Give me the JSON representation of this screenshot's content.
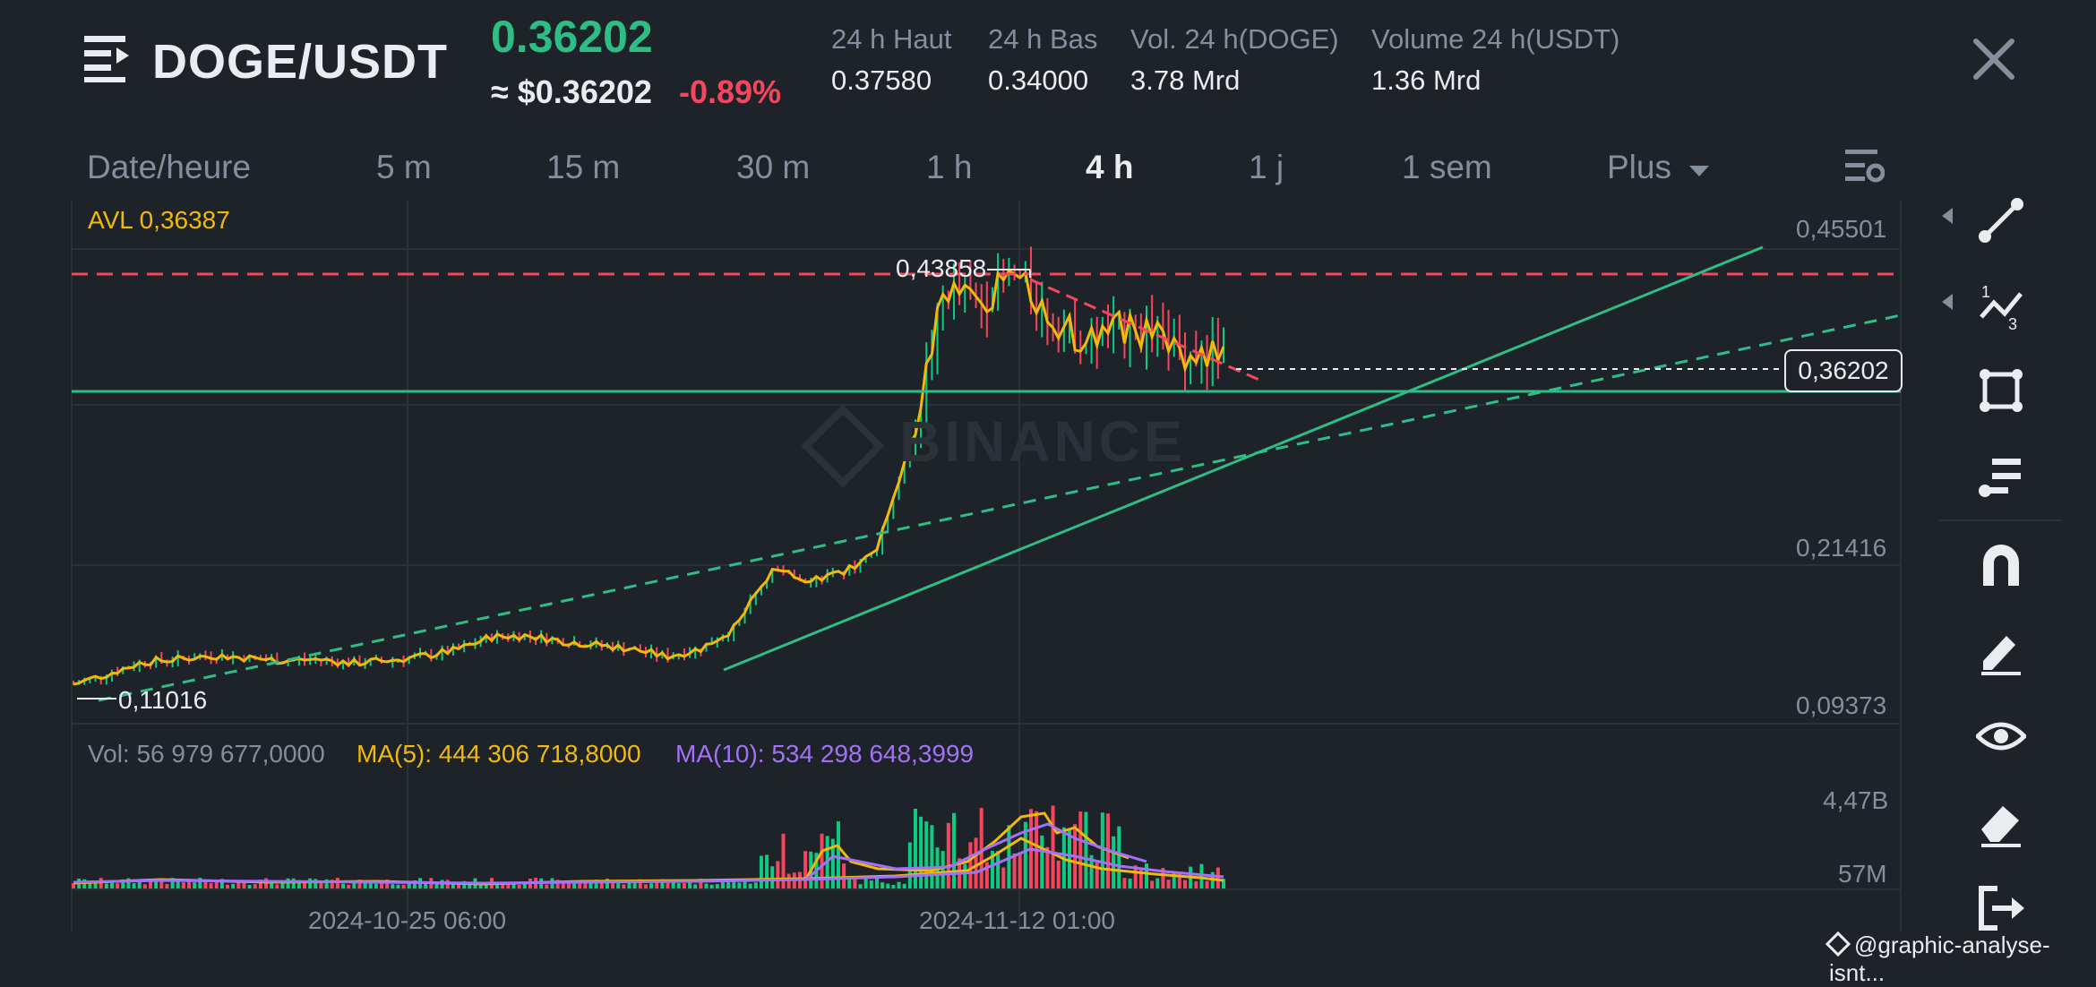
{
  "header": {
    "pair": "DOGE/USDT",
    "price": "0.36202",
    "approx_price": "≈ $0.36202",
    "change": "-0.89%",
    "stats": [
      {
        "label": "24 h Haut",
        "value": "0.37580"
      },
      {
        "label": "24 h Bas",
        "value": "0.34000"
      },
      {
        "label": "Vol. 24 h(DOGE)",
        "value": "3.78 Mrd"
      },
      {
        "label": "Volume 24 h(USDT)",
        "value": "1.36 Mrd"
      }
    ]
  },
  "timeframes": [
    "Date/heure",
    "5 m",
    "15 m",
    "30 m",
    "1 h",
    "4 h",
    "1 j",
    "1 sem",
    "Plus"
  ],
  "active_timeframe": "4 h",
  "chart": {
    "avl_label": "AVL 0,36387",
    "high_label": "0,43858",
    "low_label": "0,11016",
    "current_price_box": "0,36202",
    "watermark": "BINANCE",
    "price_axis": [
      "0,45501",
      "0,21416",
      "0,09373"
    ],
    "volume_axis": [
      "4,47B",
      "57M"
    ],
    "time_axis": [
      "2024-10-25 06:00",
      "2024-11-12 01:00"
    ],
    "vol_label": "Vol: 56 979 677,0000",
    "ma5_label": "MA(5): 444 306 718,8000",
    "ma10_label": "MA(10): 534 298 648,3999"
  },
  "chart_data": {
    "type": "candlestick",
    "pair": "DOGE/USDT",
    "interval": "4 h",
    "price_axis_ticks": [
      0.45501,
      0.21416,
      0.09373
    ],
    "volume_axis_ticks": [
      "4,47B",
      "57M"
    ],
    "x_ticks": [
      "2024-10-25 06:00",
      "2024-11-12 01:00"
    ],
    "close_path": [
      0.11,
      0.118,
      0.127,
      0.129,
      0.132,
      0.13,
      0.128,
      0.129,
      0.126,
      0.128,
      0.131,
      0.136,
      0.146,
      0.147,
      0.143,
      0.14,
      0.137,
      0.131,
      0.137,
      0.153,
      0.196,
      0.19,
      0.193,
      0.21,
      0.29,
      0.41,
      0.4,
      0.42,
      0.39,
      0.37,
      0.38,
      0.375,
      0.36,
      0.362
    ],
    "marked_high": 0.43858,
    "marked_low": 0.11016,
    "current": 0.36202,
    "avl": 0.36387,
    "annotations": [
      "horizontal resistance (red dashed)",
      "horizontal support (green)",
      "rising trend lines (green)",
      "descending triangle line (red dashed)"
    ],
    "colors": {
      "up": "#0ecb81",
      "down": "#f6465d",
      "line": "#f0b90b",
      "ma10": "#c084fc"
    }
  },
  "toolbar": [
    "line-tool-icon",
    "fib-tool-icon",
    "shape-tool-icon",
    "text-tool-icon",
    "magnet-icon",
    "pencil-icon",
    "eye-icon",
    "eraser-icon",
    "exit-icon"
  ],
  "footer": {
    "credit": "@graphic-analyse-isnt..."
  },
  "colors": {
    "green": "#2ebd85",
    "red": "#f6465d",
    "gold": "#f0b90b",
    "purple": "#a371f7",
    "muted": "#848e9c"
  }
}
